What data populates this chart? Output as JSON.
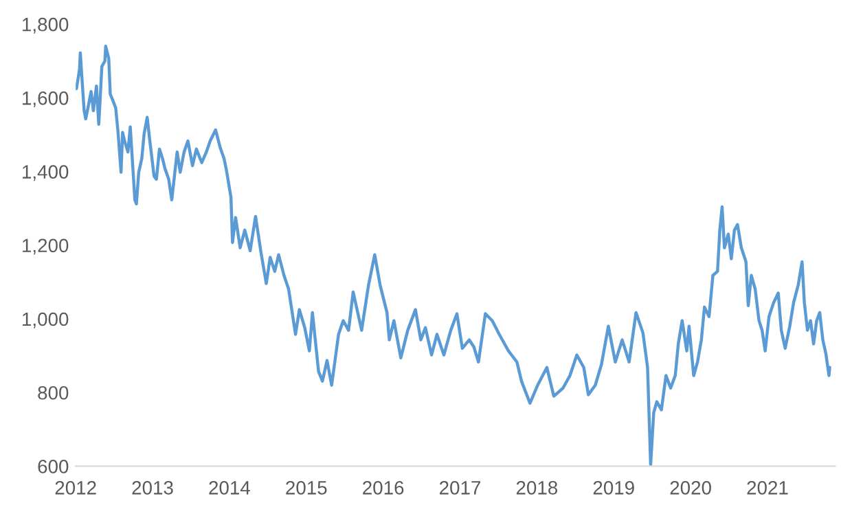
{
  "chart_data": {
    "type": "line",
    "series": [
      {
        "color": "#5b9bd5",
        "x": [
          2012.01,
          2012.05,
          2012.06,
          2012.08,
          2012.11,
          2012.13,
          2012.16,
          2012.2,
          2012.23,
          2012.27,
          2012.3,
          2012.32,
          2012.34,
          2012.38,
          2012.39,
          2012.43,
          2012.45,
          2012.48,
          2012.52,
          2012.55,
          2012.59,
          2012.61,
          2012.64,
          2012.68,
          2012.71,
          2012.77,
          2012.79,
          2012.82,
          2012.86,
          2012.89,
          2012.93,
          2012.96,
          2013.02,
          2013.05,
          2013.09,
          2013.13,
          2013.16,
          2013.21,
          2013.25,
          2013.29,
          2013.32,
          2013.36,
          2013.41,
          2013.46,
          2013.52,
          2013.57,
          2013.64,
          2013.7,
          2013.75,
          2013.82,
          2013.88,
          2013.93,
          2013.96,
          2014.02,
          2014.04,
          2014.08,
          2014.14,
          2014.2,
          2014.27,
          2014.34,
          2014.41,
          2014.48,
          2014.53,
          2014.59,
          2014.64,
          2014.71,
          2014.77,
          2014.86,
          2014.91,
          2014.98,
          2015.04,
          2015.08,
          2015.16,
          2015.21,
          2015.27,
          2015.33,
          2015.42,
          2015.48,
          2015.55,
          2015.61,
          2015.72,
          2015.81,
          2015.89,
          2015.96,
          2016.05,
          2016.08,
          2016.14,
          2016.23,
          2016.32,
          2016.42,
          2016.49,
          2016.55,
          2016.63,
          2016.7,
          2016.79,
          2016.88,
          2016.96,
          2017.03,
          2017.12,
          2017.18,
          2017.24,
          2017.33,
          2017.42,
          2017.51,
          2017.63,
          2017.74,
          2017.8,
          2017.91,
          2018.01,
          2018.13,
          2018.22,
          2018.34,
          2018.43,
          2018.52,
          2018.61,
          2018.67,
          2018.76,
          2018.84,
          2018.93,
          2019.02,
          2019.11,
          2019.2,
          2019.29,
          2019.38,
          2019.44,
          2019.48,
          2019.52,
          2019.56,
          2019.62,
          2019.68,
          2019.74,
          2019.8,
          2019.84,
          2019.89,
          2019.95,
          2019.98,
          2020.04,
          2020.09,
          2020.14,
          2020.18,
          2020.24,
          2020.29,
          2020.35,
          2020.38,
          2020.41,
          2020.44,
          2020.49,
          2020.53,
          2020.57,
          2020.61,
          2020.66,
          2020.72,
          2020.75,
          2020.79,
          2020.84,
          2020.89,
          2020.93,
          2020.97,
          2021.02,
          2021.08,
          2021.14,
          2021.18,
          2021.23,
          2021.29,
          2021.34,
          2021.4,
          2021.45,
          2021.48,
          2021.52,
          2021.56,
          2021.6,
          2021.64,
          2021.68,
          2021.72,
          2021.76,
          2021.8,
          2021.81
        ],
        "values": [
          1625,
          1677,
          1722,
          1658,
          1565,
          1543,
          1573,
          1617,
          1565,
          1632,
          1528,
          1603,
          1685,
          1700,
          1740,
          1707,
          1610,
          1595,
          1573,
          1509,
          1398,
          1506,
          1480,
          1453,
          1521,
          1323,
          1312,
          1398,
          1435,
          1502,
          1547,
          1491,
          1387,
          1379,
          1461,
          1435,
          1409,
          1379,
          1323,
          1398,
          1453,
          1398,
          1453,
          1483,
          1416,
          1461,
          1424,
          1453,
          1483,
          1513,
          1465,
          1435,
          1405,
          1330,
          1207,
          1275,
          1193,
          1241,
          1185,
          1278,
          1181,
          1096,
          1167,
          1129,
          1174,
          1118,
          1081,
          958,
          1025,
          976,
          913,
          1017,
          857,
          831,
          887,
          820,
          958,
          995,
          969,
          1073,
          969,
          1092,
          1174,
          1092,
          1017,
          943,
          995,
          894,
          969,
          1025,
          943,
          976,
          902,
          958,
          902,
          969,
          1014,
          920,
          943,
          924,
          883,
          1014,
          995,
          958,
          913,
          883,
          831,
          771,
          820,
          868,
          790,
          812,
          846,
          902,
          868,
          794,
          820,
          876,
          980,
          883,
          943,
          883,
          1017,
          962,
          868,
          604,
          745,
          775,
          753,
          846,
          812,
          846,
          932,
          995,
          913,
          980,
          846,
          883,
          943,
          1032,
          1006,
          1118,
          1129,
          1241,
          1304,
          1193,
          1230,
          1163,
          1241,
          1256,
          1193,
          1155,
          1036,
          1118,
          1081,
          995,
          969,
          913,
          1006,
          1044,
          1070,
          969,
          920,
          980,
          1044,
          1092,
          1155,
          1044,
          969,
          995,
          932,
          995,
          1017,
          943,
          905,
          846,
          868
        ]
      }
    ],
    "xlim": [
      2012,
      2021.88
    ],
    "xticks": [
      2012,
      2013,
      2014,
      2015,
      2016,
      2017,
      2018,
      2019,
      2020,
      2021
    ],
    "ylim": [
      600,
      1800
    ],
    "yticks": [
      {
        "value": 600,
        "label": "600"
      },
      {
        "value": 800,
        "label": "800"
      },
      {
        "value": 1000,
        "label": "1,000"
      },
      {
        "value": 1200,
        "label": "1,200"
      },
      {
        "value": 1400,
        "label": "1,400"
      },
      {
        "value": 1600,
        "label": "1,600"
      },
      {
        "value": 1800,
        "label": "1,800"
      }
    ],
    "grid": false,
    "legend": false
  }
}
